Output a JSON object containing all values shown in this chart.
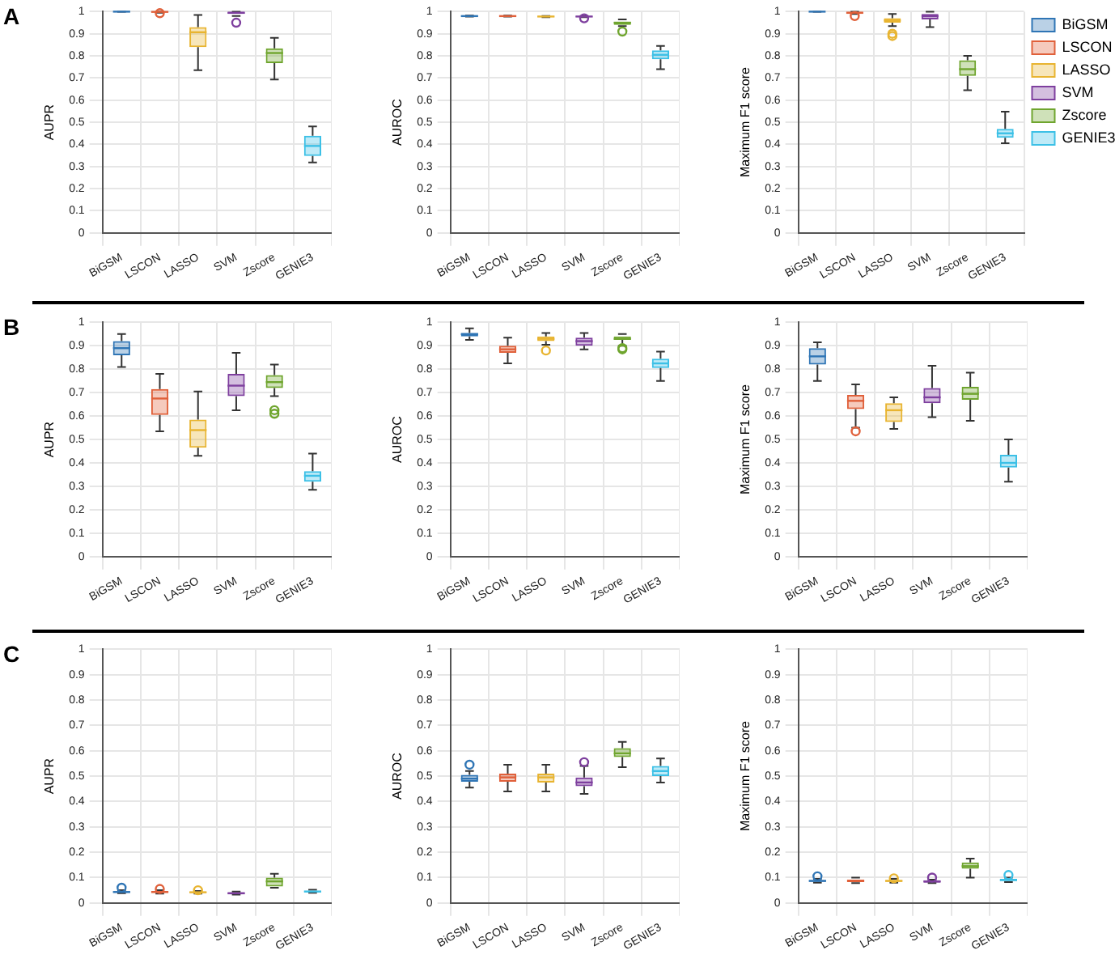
{
  "chart_data": [
    {
      "type": "box",
      "annotations": [
        "A"
      ],
      "ylabel": "AUPR",
      "categories": [
        "BiGSM",
        "LSCON",
        "LASSO",
        "SVM",
        "Zscore",
        "GENIE3"
      ],
      "colors": [
        "#2f75b5",
        "#e0603a",
        "#e8b430",
        "#7e3f9e",
        "#6fa52e",
        "#3cc0e6"
      ],
      "ylim": [
        0,
        1
      ],
      "yticks": [
        0,
        0.1,
        0.2,
        0.3,
        0.4,
        0.5,
        0.6,
        0.7,
        0.8,
        0.9,
        1
      ],
      "grid": true,
      "boxes": [
        {
          "low": 1,
          "q1": 1,
          "median": 1,
          "q3": 1,
          "high": 1
        },
        {
          "low": 0.995,
          "q1": 0.997,
          "median": 0.999,
          "q3": 1,
          "high": 1,
          "outliers": [
            0.993
          ]
        },
        {
          "low": 0.735,
          "q1": 0.84,
          "median": 0.907,
          "q3": 0.93,
          "high": 0.985
        },
        {
          "low": 0.98,
          "q1": 0.99,
          "median": 0.995,
          "q3": 1,
          "high": 1,
          "outliers": [
            0.95
          ]
        },
        {
          "low": 0.693,
          "q1": 0.767,
          "median": 0.813,
          "q3": 0.834,
          "high": 0.882
        },
        {
          "low": 0.318,
          "q1": 0.348,
          "median": 0.393,
          "q3": 0.439,
          "high": 0.481
        }
      ]
    },
    {
      "type": "box",
      "ylabel": "AUROC",
      "categories": [
        "BiGSM",
        "LSCON",
        "LASSO",
        "SVM",
        "Zscore",
        "GENIE3"
      ],
      "colors": [
        "#2f75b5",
        "#e0603a",
        "#e8b430",
        "#7e3f9e",
        "#6fa52e",
        "#3cc0e6"
      ],
      "ylim": [
        0,
        1
      ],
      "yticks": [
        0,
        0.1,
        0.2,
        0.3,
        0.4,
        0.5,
        0.6,
        0.7,
        0.8,
        0.9,
        1
      ],
      "grid": true,
      "boxes": [
        {
          "low": 0.978,
          "q1": 0.979,
          "median": 0.98,
          "q3": 0.981,
          "high": 0.982
        },
        {
          "low": 0.978,
          "q1": 0.979,
          "median": 0.98,
          "q3": 0.981,
          "high": 0.982
        },
        {
          "low": 0.975,
          "q1": 0.976,
          "median": 0.978,
          "q3": 0.979,
          "high": 0.98
        },
        {
          "low": 0.975,
          "q1": 0.976,
          "median": 0.978,
          "q3": 0.979,
          "high": 0.98,
          "outliers": [
            0.97
          ]
        },
        {
          "low": 0.935,
          "q1": 0.94,
          "median": 0.95,
          "q3": 0.955,
          "high": 0.965,
          "outliers": [
            0.91
          ]
        },
        {
          "low": 0.74,
          "q1": 0.785,
          "median": 0.805,
          "q3": 0.825,
          "high": 0.845
        }
      ]
    },
    {
      "type": "box",
      "ylabel": "Maximum F1 score",
      "legend": "right",
      "categories": [
        "BiGSM",
        "LSCON",
        "LASSO",
        "SVM",
        "Zscore",
        "GENIE3"
      ],
      "ylim": [
        0,
        1
      ],
      "yticks": [
        0,
        0.1,
        0.2,
        0.3,
        0.4,
        0.5,
        0.6,
        0.7,
        0.8,
        0.9,
        1
      ],
      "grid": true,
      "series": [
        {
          "name": "BiGSM",
          "color": "#2f75b5",
          "boxes": [
            {
              "low": 1,
              "q1": 1,
              "median": 1,
              "q3": 1,
              "high": 1
            },
            null,
            null,
            null,
            null,
            null
          ]
        },
        {
          "name": "LSCON",
          "color": "#e0603a",
          "boxes": [
            null,
            {
              "low": 0.99,
              "q1": 0.99,
              "median": 0.995,
              "q3": 1,
              "high": 1,
              "outliers": [
                0.98
              ]
            },
            null,
            null,
            null,
            null
          ]
        },
        {
          "name": "LASSO",
          "color": "#e8b430",
          "boxes": [
            null,
            null,
            {
              "low": 0.935,
              "q1": 0.95,
              "median": 0.96,
              "q3": 0.97,
              "high": 0.99,
              "outliers": [
                0.9,
                0.89
              ]
            },
            null,
            null,
            null
          ]
        },
        {
          "name": "SVM",
          "color": "#7e3f9e",
          "boxes": [
            null,
            null,
            null,
            {
              "low": 0.93,
              "q1": 0.965,
              "median": 0.98,
              "q3": 0.99,
              "high": 1
            },
            null,
            null
          ]
        },
        {
          "name": "Zscore",
          "color": "#6fa52e",
          "boxes": [
            null,
            null,
            null,
            null,
            {
              "low": 0.645,
              "q1": 0.71,
              "median": 0.74,
              "q3": 0.78,
              "high": 0.8
            },
            null
          ]
        },
        {
          "name": "GENIE3",
          "color": "#3cc0e6",
          "boxes": [
            null,
            null,
            null,
            null,
            null,
            {
              "low": 0.405,
              "q1": 0.43,
              "median": 0.45,
              "q3": 0.47,
              "high": 0.548
            }
          ]
        }
      ]
    },
    {
      "type": "box",
      "annotations": [
        "B"
      ],
      "ylabel": "AUPR",
      "categories": [
        "BiGSM",
        "LSCON",
        "LASSO",
        "SVM",
        "Zscore",
        "GENIE3"
      ],
      "colors": [
        "#2f75b5",
        "#e0603a",
        "#e8b430",
        "#7e3f9e",
        "#6fa52e",
        "#3cc0e6"
      ],
      "ylim": [
        0,
        1
      ],
      "yticks": [
        0,
        0.1,
        0.2,
        0.3,
        0.4,
        0.5,
        0.6,
        0.7,
        0.8,
        0.9,
        1
      ],
      "grid": true,
      "boxes": [
        {
          "low": 0.81,
          "q1": 0.86,
          "median": 0.89,
          "q3": 0.92,
          "high": 0.95
        },
        {
          "low": 0.535,
          "q1": 0.605,
          "median": 0.675,
          "q3": 0.715,
          "high": 0.78
        },
        {
          "low": 0.43,
          "q1": 0.465,
          "median": 0.54,
          "q3": 0.585,
          "high": 0.705
        },
        {
          "low": 0.625,
          "q1": 0.685,
          "median": 0.73,
          "q3": 0.78,
          "high": 0.87
        },
        {
          "low": 0.685,
          "q1": 0.72,
          "median": 0.745,
          "q3": 0.775,
          "high": 0.82,
          "outliers": [
            0.625,
            0.61
          ]
        },
        {
          "low": 0.285,
          "q1": 0.32,
          "median": 0.345,
          "q3": 0.365,
          "high": 0.44
        }
      ]
    },
    {
      "type": "box",
      "ylabel": "AUROC",
      "categories": [
        "BiGSM",
        "LSCON",
        "LASSO",
        "SVM",
        "Zscore",
        "GENIE3"
      ],
      "colors": [
        "#2f75b5",
        "#e0603a",
        "#e8b430",
        "#7e3f9e",
        "#6fa52e",
        "#3cc0e6"
      ],
      "ylim": [
        0,
        1
      ],
      "yticks": [
        0,
        0.1,
        0.2,
        0.3,
        0.4,
        0.5,
        0.6,
        0.7,
        0.8,
        0.9,
        1
      ],
      "grid": true,
      "boxes": [
        {
          "low": 0.925,
          "q1": 0.94,
          "median": 0.95,
          "q3": 0.955,
          "high": 0.975
        },
        {
          "low": 0.825,
          "q1": 0.87,
          "median": 0.885,
          "q3": 0.9,
          "high": 0.935
        },
        {
          "low": 0.905,
          "q1": 0.92,
          "median": 0.93,
          "q3": 0.94,
          "high": 0.955,
          "outliers": [
            0.88
          ]
        },
        {
          "low": 0.885,
          "q1": 0.9,
          "median": 0.92,
          "q3": 0.935,
          "high": 0.955
        },
        {
          "low": 0.9,
          "q1": 0.925,
          "median": 0.93,
          "q3": 0.94,
          "high": 0.95,
          "outliers": [
            0.89,
            0.885
          ]
        },
        {
          "low": 0.75,
          "q1": 0.805,
          "median": 0.825,
          "q3": 0.845,
          "high": 0.875
        }
      ]
    },
    {
      "type": "box",
      "ylabel": "Maximum F1 score",
      "categories": [
        "BiGSM",
        "LSCON",
        "LASSO",
        "SVM",
        "Zscore",
        "GENIE3"
      ],
      "colors": [
        "#2f75b5",
        "#e0603a",
        "#e8b430",
        "#7e3f9e",
        "#6fa52e",
        "#3cc0e6"
      ],
      "ylim": [
        0,
        1
      ],
      "yticks": [
        0,
        0.1,
        0.2,
        0.3,
        0.4,
        0.5,
        0.6,
        0.7,
        0.8,
        0.9,
        1
      ],
      "grid": true,
      "boxes": [
        {
          "low": 0.75,
          "q1": 0.82,
          "median": 0.855,
          "q3": 0.89,
          "high": 0.915
        },
        {
          "low": 0.55,
          "q1": 0.63,
          "median": 0.665,
          "q3": 0.69,
          "high": 0.735,
          "outliers": [
            0.535
          ]
        },
        {
          "low": 0.545,
          "q1": 0.575,
          "median": 0.625,
          "q3": 0.655,
          "high": 0.68
        },
        {
          "low": 0.595,
          "q1": 0.655,
          "median": 0.68,
          "q3": 0.72,
          "high": 0.815
        },
        {
          "low": 0.58,
          "q1": 0.67,
          "median": 0.695,
          "q3": 0.725,
          "high": 0.785
        },
        {
          "low": 0.32,
          "q1": 0.38,
          "median": 0.4,
          "q3": 0.435,
          "high": 0.5
        }
      ]
    },
    {
      "type": "box",
      "annotations": [
        "C"
      ],
      "ylabel": "AUPR",
      "categories": [
        "BiGSM",
        "LSCON",
        "LASSO",
        "SVM",
        "Zscore",
        "GENIE3"
      ],
      "colors": [
        "#2f75b5",
        "#e0603a",
        "#e8b430",
        "#7e3f9e",
        "#6fa52e",
        "#3cc0e6"
      ],
      "ylim": [
        0,
        1
      ],
      "yticks": [
        0,
        0.1,
        0.2,
        0.3,
        0.4,
        0.5,
        0.6,
        0.7,
        0.8,
        0.9,
        1
      ],
      "grid": true,
      "boxes": [
        {
          "low": 0.038,
          "q1": 0.04,
          "median": 0.043,
          "q3": 0.046,
          "high": 0.05,
          "outliers": [
            0.06
          ]
        },
        {
          "low": 0.037,
          "q1": 0.04,
          "median": 0.043,
          "q3": 0.047,
          "high": 0.05,
          "outliers": [
            0.055
          ]
        },
        {
          "low": 0.037,
          "q1": 0.04,
          "median": 0.042,
          "q3": 0.045,
          "high": 0.047,
          "outliers": [
            0.05
          ]
        },
        {
          "low": 0.033,
          "q1": 0.035,
          "median": 0.038,
          "q3": 0.042,
          "high": 0.045
        },
        {
          "low": 0.06,
          "q1": 0.065,
          "median": 0.085,
          "q3": 0.1,
          "high": 0.115
        },
        {
          "low": 0.04,
          "q1": 0.042,
          "median": 0.045,
          "q3": 0.048,
          "high": 0.052
        }
      ]
    },
    {
      "type": "box",
      "ylabel": "AUROC",
      "categories": [
        "BiGSM",
        "LSCON",
        "LASSO",
        "SVM",
        "Zscore",
        "GENIE3"
      ],
      "colors": [
        "#2f75b5",
        "#e0603a",
        "#e8b430",
        "#7e3f9e",
        "#6fa52e",
        "#3cc0e6"
      ],
      "ylim": [
        0,
        1
      ],
      "yticks": [
        0,
        0.1,
        0.2,
        0.3,
        0.4,
        0.5,
        0.6,
        0.7,
        0.8,
        0.9,
        1
      ],
      "grid": true,
      "boxes": [
        {
          "low": 0.455,
          "q1": 0.478,
          "median": 0.49,
          "q3": 0.505,
          "high": 0.52,
          "outliers": [
            0.545
          ]
        },
        {
          "low": 0.44,
          "q1": 0.478,
          "median": 0.495,
          "q3": 0.51,
          "high": 0.545
        },
        {
          "low": 0.44,
          "q1": 0.475,
          "median": 0.495,
          "q3": 0.51,
          "high": 0.545
        },
        {
          "low": 0.43,
          "q1": 0.46,
          "median": 0.475,
          "q3": 0.495,
          "high": 0.54,
          "outliers": [
            0.555
          ]
        },
        {
          "low": 0.535,
          "q1": 0.575,
          "median": 0.59,
          "q3": 0.61,
          "high": 0.635
        },
        {
          "low": 0.475,
          "q1": 0.5,
          "median": 0.52,
          "q3": 0.54,
          "high": 0.57
        }
      ]
    },
    {
      "type": "box",
      "ylabel": "Maximum F1 score",
      "categories": [
        "BiGSM",
        "LSCON",
        "LASSO",
        "SVM",
        "Zscore",
        "GENIE3"
      ],
      "colors": [
        "#2f75b5",
        "#e0603a",
        "#e8b430",
        "#7e3f9e",
        "#6fa52e",
        "#3cc0e6"
      ],
      "ylim": [
        0,
        1
      ],
      "yticks": [
        0,
        0.1,
        0.2,
        0.3,
        0.4,
        0.5,
        0.6,
        0.7,
        0.8,
        0.9,
        1
      ],
      "grid": true,
      "boxes": [
        {
          "low": 0.08,
          "q1": 0.083,
          "median": 0.087,
          "q3": 0.09,
          "high": 0.095,
          "outliers": [
            0.105
          ]
        },
        {
          "low": 0.078,
          "q1": 0.082,
          "median": 0.087,
          "q3": 0.092,
          "high": 0.1
        },
        {
          "low": 0.08,
          "q1": 0.083,
          "median": 0.087,
          "q3": 0.09,
          "high": 0.095,
          "outliers": [
            0.097
          ]
        },
        {
          "low": 0.078,
          "q1": 0.08,
          "median": 0.085,
          "q3": 0.088,
          "high": 0.092,
          "outliers": [
            0.1
          ]
        },
        {
          "low": 0.1,
          "q1": 0.135,
          "median": 0.145,
          "q3": 0.16,
          "high": 0.175
        },
        {
          "low": 0.082,
          "q1": 0.087,
          "median": 0.09,
          "q3": 0.095,
          "high": 0.1,
          "outliers": [
            0.11
          ]
        }
      ]
    }
  ]
}
